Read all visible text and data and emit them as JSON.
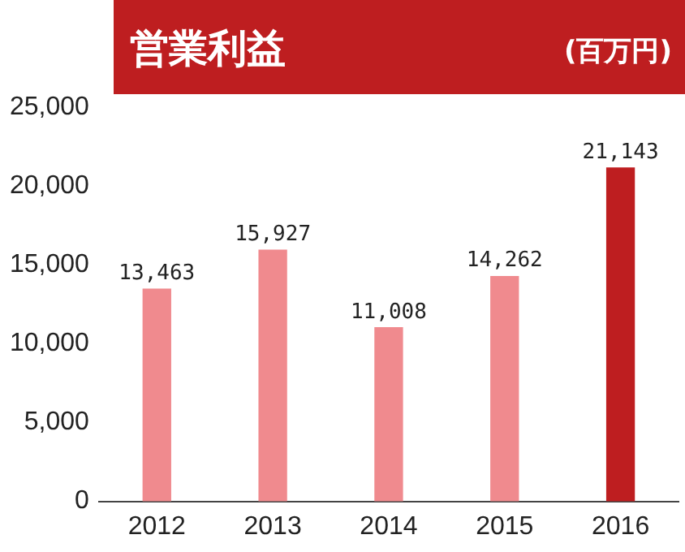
{
  "chart_data": {
    "type": "bar",
    "title": "営業利益",
    "ylabel": "(百万円)",
    "categories": [
      "2012",
      "2013",
      "2014",
      "2015",
      "2016"
    ],
    "values": [
      13463,
      15927,
      11008,
      14262,
      21143
    ],
    "colors": [
      "#f08a8e",
      "#f08a8e",
      "#f08a8e",
      "#f08a8e",
      "#be1e20"
    ],
    "value_labels": [
      "13,463",
      "15,927",
      "11,008",
      "14,262",
      "21,143"
    ],
    "ylim": [
      0,
      25000
    ],
    "yticks": [
      0,
      {
        "value": 5000,
        "label": "5,000"
      },
      {
        "value": 10000,
        "label": "10,000"
      },
      {
        "value": 15000,
        "label": "15,000"
      },
      {
        "value": 20000,
        "label": "20,000"
      },
      {
        "value": 25000,
        "label": "25,000"
      }
    ],
    "grid": false,
    "legend": false
  }
}
